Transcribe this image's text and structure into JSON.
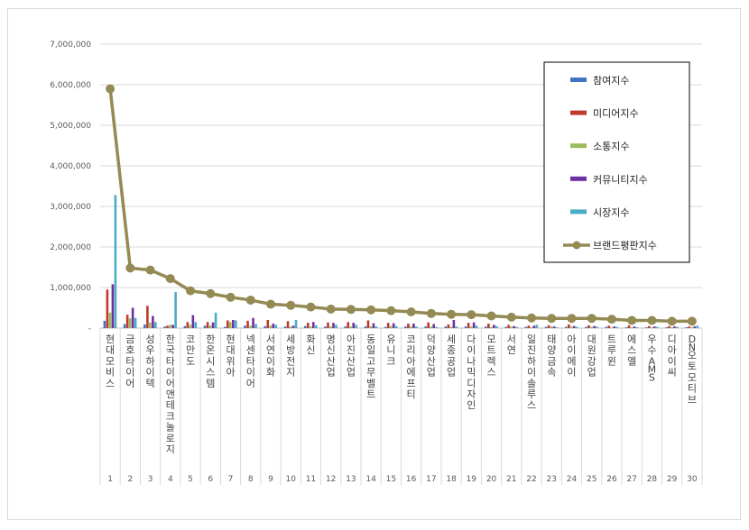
{
  "chart_data": {
    "type": "bar",
    "title": "",
    "xlabel": "",
    "ylabel": "",
    "ylim": [
      0,
      7000000
    ],
    "yticks": [
      "7,000,000",
      "6,000,000",
      "5,000,000",
      "4,000,000",
      "3,000,000",
      "2,000,000",
      "1,000,000",
      "-"
    ],
    "ranks": [
      "1",
      "2",
      "3",
      "4",
      "5",
      "6",
      "7",
      "8",
      "9",
      "10",
      "11",
      "12",
      "13",
      "14",
      "15",
      "16",
      "17",
      "18",
      "19",
      "20",
      "21",
      "22",
      "23",
      "24",
      "25",
      "26",
      "27",
      "28",
      "29",
      "30"
    ],
    "categories": [
      "현대모비스",
      "금호타이어",
      "성우하이텍",
      "한국타이어앤테크놀로지",
      "코만도",
      "한온시스템",
      "현대위아",
      "넥센타이어",
      "서연이화",
      "세방전지",
      "화신",
      "명신산업",
      "아진산업",
      "동일고무벨트",
      "유니크",
      "코리아에프티",
      "덕양산업",
      "세종공업",
      "다이나믹디자인",
      "모트렉스",
      "서연",
      "일진하이솔루스",
      "태양금속",
      "아이에이",
      "대원강업",
      "트루윈",
      "에스엘",
      "우수AMS",
      "디아이씨",
      "DN오토모티브"
    ],
    "legend_position": "top-right",
    "grid": true,
    "series": [
      {
        "name": "참여지수",
        "color": "#4472c4",
        "values": [
          180000,
          100000,
          90000,
          40000,
          50000,
          60000,
          30000,
          60000,
          50000,
          40000,
          50000,
          40000,
          40000,
          40000,
          30000,
          40000,
          40000,
          40000,
          40000,
          40000,
          30000,
          30000,
          30000,
          30000,
          30000,
          30000,
          20000,
          20000,
          20000,
          20000
        ]
      },
      {
        "name": "미디어지수",
        "color": "#c0392b",
        "values": [
          950000,
          330000,
          550000,
          60000,
          150000,
          150000,
          190000,
          180000,
          200000,
          170000,
          130000,
          140000,
          150000,
          190000,
          130000,
          110000,
          140000,
          90000,
          130000,
          110000,
          80000,
          60000,
          70000,
          90000,
          70000,
          60000,
          70000,
          50000,
          50000,
          40000
        ]
      },
      {
        "name": "소통지수",
        "color": "#9bbb59",
        "values": [
          380000,
          240000,
          140000,
          80000,
          80000,
          60000,
          150000,
          60000,
          60000,
          40000,
          40000,
          40000,
          40000,
          50000,
          50000,
          40000,
          40000,
          30000,
          40000,
          30000,
          40000,
          20000,
          40000,
          40000,
          30000,
          20000,
          20000,
          20000,
          20000,
          20000
        ]
      },
      {
        "name": "커뮤니티지수",
        "color": "#7030a0",
        "values": [
          1080000,
          500000,
          300000,
          80000,
          320000,
          140000,
          200000,
          250000,
          110000,
          60000,
          150000,
          130000,
          130000,
          120000,
          120000,
          110000,
          100000,
          200000,
          140000,
          80000,
          50000,
          60000,
          40000,
          50000,
          50000,
          40000,
          40000,
          40000,
          40000,
          40000
        ]
      },
      {
        "name": "시장지수",
        "color": "#4bacc6",
        "values": [
          3280000,
          250000,
          150000,
          890000,
          150000,
          380000,
          190000,
          100000,
          80000,
          200000,
          70000,
          80000,
          80000,
          40000,
          50000,
          40000,
          30000,
          40000,
          60000,
          50000,
          30000,
          80000,
          20000,
          30000,
          40000,
          30000,
          20000,
          30000,
          30000,
          60000
        ]
      }
    ],
    "line_series": {
      "name": "브랜드평판지수",
      "color": "#948a54",
      "values": [
        5900000,
        1480000,
        1430000,
        1220000,
        920000,
        850000,
        760000,
        690000,
        590000,
        560000,
        520000,
        470000,
        460000,
        450000,
        430000,
        400000,
        360000,
        340000,
        330000,
        300000,
        270000,
        250000,
        240000,
        240000,
        240000,
        220000,
        190000,
        190000,
        170000,
        170000
      ]
    }
  }
}
